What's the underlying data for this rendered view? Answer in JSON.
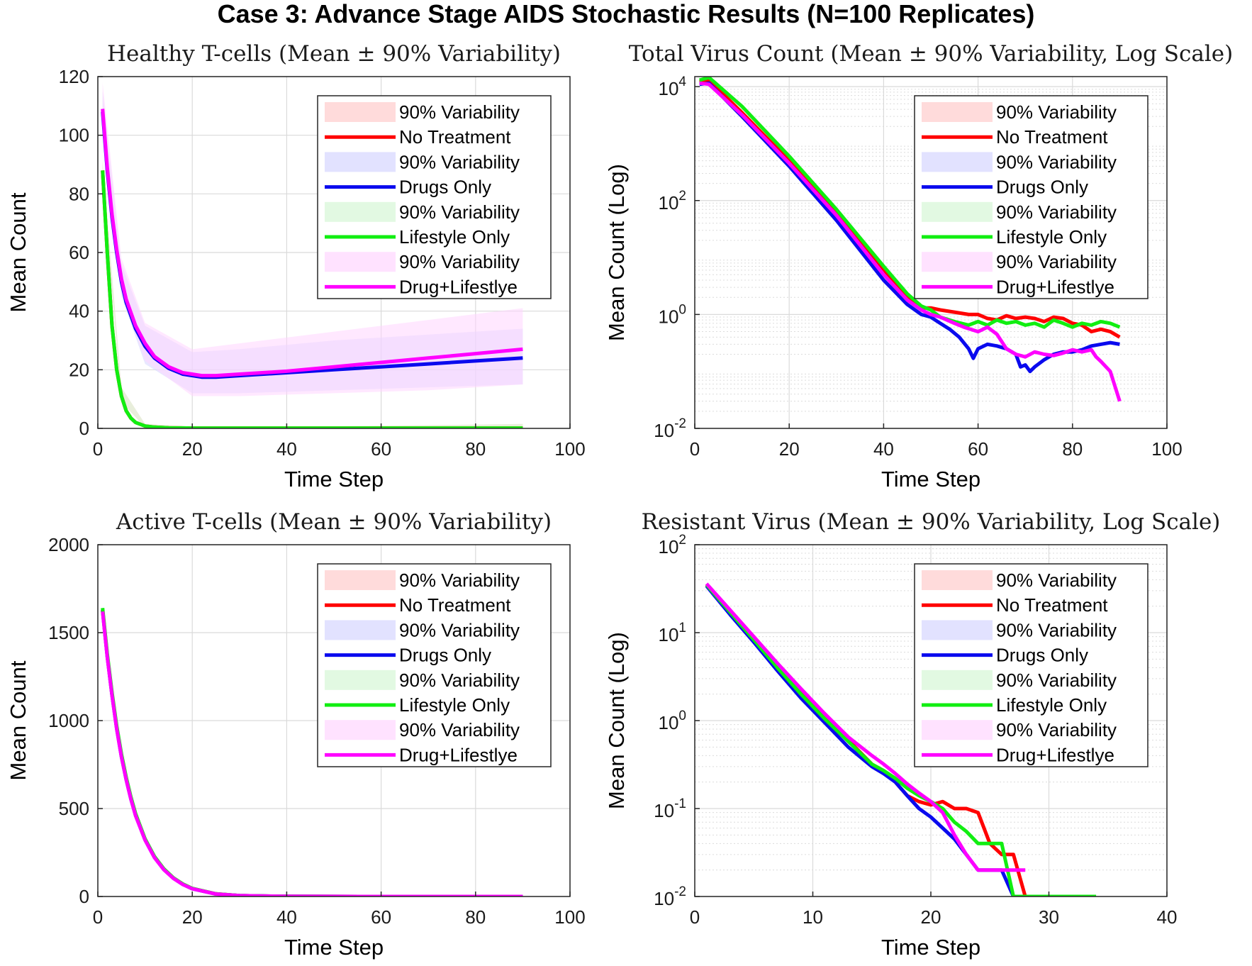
{
  "figure_title": "Case 3: Advance Stage AIDS Stochastic Results (N=100 Replicates)",
  "colors": {
    "no_treatment": "#ff0000",
    "drugs_only": "#0a0aee",
    "lifestyle_only": "#11ee11",
    "drug_lifestyle": "#ff00ff",
    "band_no_treatment": "#ffcccc",
    "band_drugs_only": "#d6d6ff",
    "band_lifestyle_only": "#d6f7d6",
    "band_drug_lifestyle": "#ffd6ff"
  },
  "legend_labels": [
    "90% Variability",
    "No Treatment",
    "90% Variability",
    " Drugs Only",
    "90% Variability",
    "Lifestyle Only",
    "90% Variability",
    "Drug+Lifestlye"
  ],
  "chart_data": [
    {
      "id": "healthy",
      "type": "line",
      "title": "Healthy T-cells (Mean ± 90% Variability)",
      "xlabel": "Time Step",
      "ylabel": "Mean Count",
      "xlim": [
        0,
        100
      ],
      "ylim": [
        0,
        120
      ],
      "yscale": "linear",
      "xticks": [
        0,
        20,
        40,
        60,
        80,
        100
      ],
      "xtick_labels": [
        "0",
        "20",
        "40",
        "60",
        "80",
        "100"
      ],
      "yticks": [
        0,
        20,
        40,
        60,
        80,
        100,
        120
      ],
      "ytick_labels": [
        "0",
        "20",
        "40",
        "60",
        "80",
        "100",
        "120"
      ],
      "grid": true,
      "legend_position": "top-right",
      "series": [
        {
          "name": "No Treatment",
          "color_key": "no_treatment",
          "x": [
            1,
            2,
            3,
            4,
            5,
            6,
            7,
            8,
            10,
            12,
            15,
            20,
            30,
            50,
            70,
            90
          ],
          "y": [
            88,
            60,
            35,
            20,
            11,
            6,
            3.5,
            2,
            0.8,
            0.4,
            0.2,
            0.1,
            0.1,
            0.1,
            0.1,
            0.1
          ],
          "band": {
            "x": [
              1,
              5,
              10,
              20,
              50,
              90
            ],
            "lo": [
              85,
              9,
              0.3,
              0,
              0,
              0
            ],
            "hi": [
              91,
              14,
              1.5,
              0.6,
              0.7,
              1.5
            ]
          }
        },
        {
          "name": "Drugs Only",
          "color_key": "drugs_only",
          "x": [
            1,
            2,
            3,
            4,
            5,
            6,
            8,
            10,
            12,
            15,
            18,
            22,
            25,
            30,
            40,
            50,
            60,
            70,
            80,
            90
          ],
          "y": [
            108,
            88,
            72,
            60,
            50,
            43,
            34,
            28,
            24,
            20.5,
            18.5,
            17.5,
            17.5,
            18,
            19,
            20,
            21,
            22,
            23,
            24
          ],
          "band": {
            "x": [
              1,
              5,
              10,
              20,
              30,
              50,
              70,
              90
            ],
            "lo": [
              100,
              45,
              22,
              12,
              12,
              13,
              14,
              15
            ],
            "hi": [
              115,
              56,
              35,
              26,
              27,
              30,
              32,
              34
            ]
          }
        },
        {
          "name": "Lifestyle Only",
          "color_key": "lifestyle_only",
          "x": [
            1,
            2,
            3,
            4,
            5,
            6,
            7,
            8,
            10,
            12,
            15,
            20,
            30,
            50,
            70,
            90
          ],
          "y": [
            88,
            60,
            35,
            20,
            11,
            6,
            3.5,
            2,
            0.8,
            0.4,
            0.2,
            0.1,
            0.1,
            0.1,
            0.1,
            0.1
          ],
          "band": {
            "x": [
              1,
              5,
              10,
              20,
              50,
              90
            ],
            "lo": [
              85,
              9,
              0.3,
              0,
              0,
              0
            ],
            "hi": [
              91,
              14,
              1.5,
              0.6,
              0.7,
              1.5
            ]
          }
        },
        {
          "name": "Drug+Lifestlye",
          "color_key": "drug_lifestyle",
          "x": [
            1,
            2,
            3,
            4,
            5,
            6,
            8,
            10,
            12,
            15,
            18,
            22,
            25,
            30,
            40,
            50,
            60,
            70,
            80,
            90
          ],
          "y": [
            109,
            89,
            73,
            61,
            51,
            44,
            35,
            29,
            24.5,
            21,
            19,
            18,
            18,
            18.5,
            19.5,
            21,
            22.5,
            24,
            25.5,
            27
          ],
          "band": {
            "x": [
              1,
              5,
              10,
              20,
              30,
              50,
              70,
              90
            ],
            "lo": [
              102,
              47,
              23,
              11,
              11,
              12,
              13,
              15
            ],
            "hi": [
              118,
              58,
              36,
              27,
              29,
              33,
              37,
              41
            ]
          }
        }
      ]
    },
    {
      "id": "virus",
      "type": "line",
      "title": "Total Virus Count (Mean ± 90% Variability, Log Scale)",
      "xlabel": "Time Step",
      "ylabel": "Mean Count (Log)",
      "xlim": [
        0,
        100
      ],
      "ylim": [
        0.01,
        15000
      ],
      "yscale": "log",
      "xticks": [
        0,
        20,
        40,
        60,
        80,
        100
      ],
      "xtick_labels": [
        "0",
        "20",
        "40",
        "60",
        "80",
        "100"
      ],
      "yticks": [
        0.01,
        1,
        100,
        10000
      ],
      "ytick_bases": [
        "10",
        "10",
        "10",
        "10"
      ],
      "ytick_exps": [
        "-2",
        "0",
        "2",
        "4"
      ],
      "grid": true,
      "legend_position": "top-right",
      "series": [
        {
          "name": "No Treatment",
          "color_key": "no_treatment",
          "x": [
            1,
            3,
            10,
            20,
            30,
            40,
            45,
            48,
            50,
            52,
            55,
            58,
            60,
            62,
            64,
            66,
            68,
            70,
            72,
            74,
            76,
            78,
            80,
            82,
            84,
            86,
            88,
            90
          ],
          "y": [
            12000,
            13000,
            3500,
            500,
            60,
            6,
            2,
            1.3,
            1.3,
            1.2,
            1.1,
            1.0,
            1.0,
            0.85,
            0.8,
            0.95,
            0.85,
            0.9,
            0.85,
            0.75,
            0.9,
            0.85,
            0.7,
            0.65,
            0.5,
            0.55,
            0.5,
            0.4
          ]
        },
        {
          "name": "Drugs Only",
          "color_key": "drugs_only",
          "x": [
            1,
            3,
            10,
            20,
            30,
            40,
            45,
            48,
            50,
            52,
            54,
            56,
            58,
            59,
            60,
            62,
            64,
            66,
            68,
            69,
            70,
            71,
            72,
            74,
            76,
            78,
            80,
            82,
            84,
            86,
            88,
            90
          ],
          "y": [
            11000,
            11500,
            3000,
            400,
            45,
            4,
            1.5,
            1.0,
            0.9,
            0.7,
            0.55,
            0.4,
            0.25,
            0.17,
            0.25,
            0.3,
            0.28,
            0.25,
            0.2,
            0.12,
            0.13,
            0.1,
            0.12,
            0.16,
            0.2,
            0.22,
            0.22,
            0.24,
            0.28,
            0.3,
            0.32,
            0.3
          ]
        },
        {
          "name": "Lifestyle Only",
          "color_key": "lifestyle_only",
          "x": [
            1,
            3,
            10,
            20,
            30,
            40,
            45,
            48,
            50,
            52,
            55,
            58,
            60,
            62,
            64,
            66,
            68,
            70,
            72,
            74,
            76,
            78,
            80,
            82,
            84,
            86,
            88,
            90
          ],
          "y": [
            13000,
            14500,
            4500,
            600,
            70,
            7,
            2.3,
            1.4,
            1.2,
            0.9,
            0.75,
            0.65,
            0.75,
            0.65,
            0.8,
            0.7,
            0.75,
            0.65,
            0.7,
            0.6,
            0.8,
            0.7,
            0.6,
            0.7,
            0.65,
            0.75,
            0.7,
            0.6
          ]
        },
        {
          "name": "Drug+Lifestlye",
          "color_key": "drug_lifestyle",
          "x": [
            1,
            3,
            10,
            20,
            30,
            40,
            45,
            48,
            50,
            52,
            55,
            57,
            60,
            62,
            64,
            66,
            68,
            70,
            72,
            74,
            76,
            78,
            80,
            82,
            84,
            85,
            86,
            88,
            90
          ],
          "y": [
            11500,
            11000,
            3200,
            450,
            55,
            5,
            1.8,
            1.2,
            1.0,
            0.9,
            0.7,
            0.6,
            0.5,
            0.6,
            0.45,
            0.25,
            0.2,
            0.18,
            0.22,
            0.2,
            0.19,
            0.21,
            0.24,
            0.22,
            0.24,
            0.18,
            0.15,
            0.1,
            0.03
          ]
        }
      ]
    },
    {
      "id": "active",
      "type": "line",
      "title": "Active T-cells (Mean ± 90% Variability)",
      "xlabel": "Time Step",
      "ylabel": "Mean Count",
      "xlim": [
        0,
        100
      ],
      "ylim": [
        0,
        2000
      ],
      "yscale": "linear",
      "xticks": [
        0,
        20,
        40,
        60,
        80,
        100
      ],
      "xtick_labels": [
        "0",
        "20",
        "40",
        "60",
        "80",
        "100"
      ],
      "yticks": [
        0,
        500,
        1000,
        1500,
        2000
      ],
      "ytick_labels": [
        "0",
        "500",
        "1000",
        "1500",
        "2000"
      ],
      "grid": true,
      "legend_position": "top-right",
      "series": [
        {
          "name": "No Treatment",
          "color_key": "no_treatment",
          "x": [
            1,
            2,
            3,
            4,
            5,
            6,
            7,
            8,
            10,
            12,
            14,
            16,
            18,
            20,
            25,
            30,
            40,
            60,
            90
          ],
          "y": [
            1630,
            1370,
            1150,
            960,
            800,
            670,
            560,
            465,
            325,
            225,
            155,
            105,
            70,
            45,
            15,
            5,
            1,
            0,
            0
          ]
        },
        {
          "name": "Drugs Only",
          "color_key": "drugs_only",
          "x": [
            1,
            2,
            3,
            4,
            5,
            6,
            7,
            8,
            10,
            12,
            14,
            16,
            18,
            20,
            25,
            30,
            40,
            60,
            90
          ],
          "y": [
            1625,
            1365,
            1145,
            955,
            795,
            665,
            555,
            460,
            322,
            222,
            153,
            104,
            69,
            44,
            14,
            5,
            1,
            0,
            0
          ]
        },
        {
          "name": "Lifestyle Only",
          "color_key": "lifestyle_only",
          "x": [
            1,
            2,
            3,
            4,
            5,
            6,
            7,
            8,
            10,
            12,
            14,
            16,
            18,
            20,
            25,
            30,
            40,
            60,
            90
          ],
          "y": [
            1640,
            1380,
            1160,
            970,
            810,
            678,
            566,
            470,
            328,
            227,
            157,
            106,
            71,
            46,
            15,
            5,
            1,
            0,
            0
          ]
        },
        {
          "name": "Drug+Lifestlye",
          "color_key": "drug_lifestyle",
          "x": [
            1,
            2,
            3,
            4,
            5,
            6,
            7,
            8,
            10,
            12,
            14,
            16,
            18,
            20,
            25,
            30,
            40,
            60,
            90
          ],
          "y": [
            1620,
            1362,
            1143,
            953,
            793,
            664,
            554,
            459,
            321,
            221,
            152,
            103,
            68,
            44,
            14,
            5,
            1,
            0,
            0
          ]
        }
      ]
    },
    {
      "id": "resistant",
      "type": "line",
      "title": "Resistant Virus (Mean ± 90% Variability, Log Scale)",
      "xlabel": "Time Step",
      "ylabel": "Mean Count (Log)",
      "xlim": [
        0,
        40
      ],
      "ylim": [
        0.01,
        100
      ],
      "yscale": "log",
      "xticks": [
        0,
        10,
        20,
        30,
        40
      ],
      "xtick_labels": [
        "0",
        "10",
        "20",
        "30",
        "40"
      ],
      "yticks": [
        0.01,
        0.1,
        1,
        10,
        100
      ],
      "ytick_bases": [
        "10",
        "10",
        "10",
        "10",
        "10"
      ],
      "ytick_exps": [
        "-2",
        "-1",
        "0",
        "1",
        "2"
      ],
      "grid": true,
      "legend_position": "top-right",
      "series": [
        {
          "name": "No Treatment",
          "color_key": "no_treatment",
          "x": [
            1,
            3,
            5,
            7,
            9,
            11,
            13,
            15,
            16,
            17,
            18,
            19,
            20,
            21,
            22,
            23,
            24,
            25,
            26,
            26.5,
            27,
            28
          ],
          "y": [
            35,
            17,
            8.5,
            4.2,
            2.1,
            1.1,
            0.6,
            0.32,
            0.26,
            0.2,
            0.14,
            0.12,
            0.11,
            0.12,
            0.1,
            0.1,
            0.09,
            0.04,
            0.03,
            0.03,
            0.03,
            0.01
          ]
        },
        {
          "name": "Drugs Only",
          "color_key": "drugs_only",
          "x": [
            1,
            3,
            5,
            7,
            9,
            11,
            13,
            15,
            16,
            17,
            18,
            19,
            20,
            21,
            22,
            23,
            24,
            25,
            26,
            27
          ],
          "y": [
            34,
            16,
            7.8,
            3.7,
            1.8,
            0.95,
            0.5,
            0.3,
            0.25,
            0.2,
            0.14,
            0.1,
            0.08,
            0.06,
            0.045,
            0.03,
            0.02,
            0.02,
            0.02,
            0.01
          ]
        },
        {
          "name": "Lifestyle Only",
          "color_key": "lifestyle_only",
          "x": [
            1,
            3,
            5,
            7,
            9,
            11,
            13,
            15,
            16,
            17,
            18,
            19,
            20,
            21,
            22,
            23,
            24,
            25,
            26,
            27,
            28,
            30,
            34
          ],
          "y": [
            35,
            17,
            8.3,
            4.0,
            2.0,
            1.05,
            0.58,
            0.32,
            0.27,
            0.22,
            0.17,
            0.14,
            0.12,
            0.1,
            0.07,
            0.055,
            0.04,
            0.04,
            0.04,
            0.01,
            0.01,
            0.01,
            0.01
          ]
        },
        {
          "name": "Drug+Lifestlye",
          "color_key": "drug_lifestyle",
          "x": [
            1,
            3,
            5,
            7,
            9,
            11,
            13,
            15,
            16,
            17,
            18,
            19,
            20,
            21,
            22,
            23,
            24,
            25,
            26,
            27,
            28
          ],
          "y": [
            36,
            18,
            9,
            4.5,
            2.3,
            1.2,
            0.65,
            0.4,
            0.32,
            0.25,
            0.19,
            0.15,
            0.12,
            0.09,
            0.05,
            0.03,
            0.02,
            0.02,
            0.02,
            0.02,
            0.02
          ]
        }
      ]
    }
  ]
}
